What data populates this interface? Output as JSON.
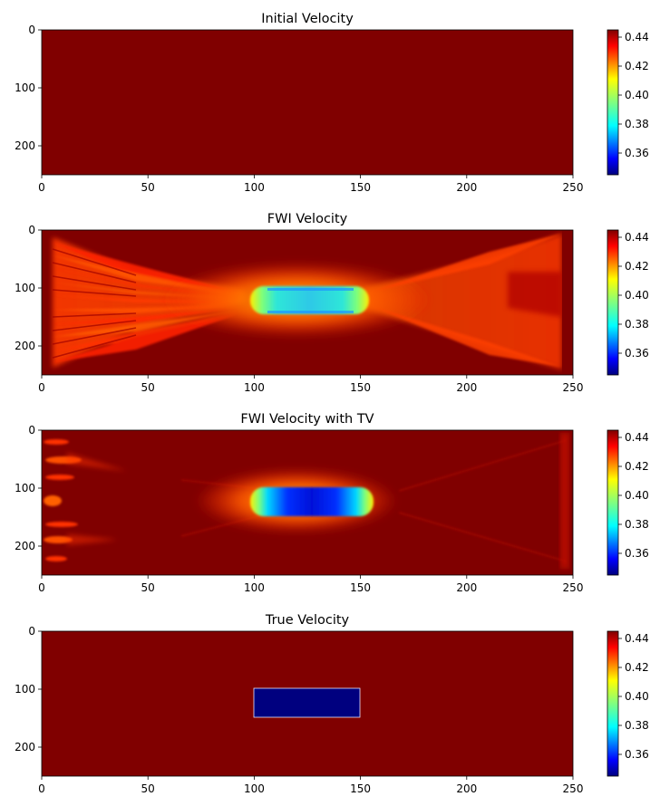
{
  "chart_data": [
    {
      "type": "heatmap",
      "title": "Initial Velocity",
      "image_id": "initial",
      "x_ticks": [
        "0",
        "50",
        "100",
        "150",
        "200",
        "250"
      ],
      "y_ticks": [
        "0",
        "100",
        "200"
      ],
      "xlim": [
        0,
        250
      ],
      "ylim": [
        250,
        0
      ],
      "colorbar": {
        "ticks": [
          "0.36",
          "0.38",
          "0.40",
          "0.42",
          "0.44"
        ],
        "range": [
          0.345,
          0.445
        ],
        "colormap": "jet"
      },
      "description_values": {
        "background": 0.445
      }
    },
    {
      "type": "heatmap",
      "title": "FWI Velocity",
      "image_id": "fwi",
      "x_ticks": [
        "0",
        "50",
        "100",
        "150",
        "200",
        "250"
      ],
      "y_ticks": [
        "0",
        "100",
        "200"
      ],
      "xlim": [
        0,
        250
      ],
      "ylim": [
        250,
        0
      ],
      "colorbar": {
        "ticks": [
          "0.36",
          "0.38",
          "0.40",
          "0.42",
          "0.44"
        ],
        "range": [
          0.345,
          0.445
        ],
        "colormap": "jet"
      },
      "description_values": {
        "background": 0.445,
        "anomaly_min": 0.375,
        "anomaly_x": [
          100,
          150
        ],
        "anomaly_y": [
          100,
          150
        ]
      }
    },
    {
      "type": "heatmap",
      "title": "FWI Velocity with TV",
      "image_id": "fwi_tv",
      "x_ticks": [
        "0",
        "50",
        "100",
        "150",
        "200",
        "250"
      ],
      "y_ticks": [
        "0",
        "100",
        "200"
      ],
      "xlim": [
        0,
        250
      ],
      "ylim": [
        250,
        0
      ],
      "colorbar": {
        "ticks": [
          "0.36",
          "0.38",
          "0.40",
          "0.42",
          "0.44"
        ],
        "range": [
          0.345,
          0.445
        ],
        "colormap": "jet"
      },
      "description_values": {
        "background": 0.445,
        "anomaly_min": 0.352,
        "anomaly_x": [
          100,
          150
        ],
        "anomaly_y": [
          100,
          150
        ]
      }
    },
    {
      "type": "heatmap",
      "title": "True Velocity",
      "image_id": "true",
      "x_ticks": [
        "0",
        "50",
        "100",
        "150",
        "200",
        "250"
      ],
      "y_ticks": [
        "0",
        "100",
        "200"
      ],
      "xlim": [
        0,
        250
      ],
      "ylim": [
        250,
        0
      ],
      "colorbar": {
        "ticks": [
          "0.36",
          "0.38",
          "0.40",
          "0.42",
          "0.44"
        ],
        "range": [
          0.345,
          0.445
        ],
        "colormap": "jet"
      },
      "description_values": {
        "background": 0.445,
        "anomaly_value": 0.345,
        "anomaly_x": [
          100,
          150
        ],
        "anomaly_y": [
          100,
          150
        ]
      }
    }
  ],
  "colors": {
    "background_maroon": "#800000",
    "anomaly_navy": "#00007f"
  }
}
